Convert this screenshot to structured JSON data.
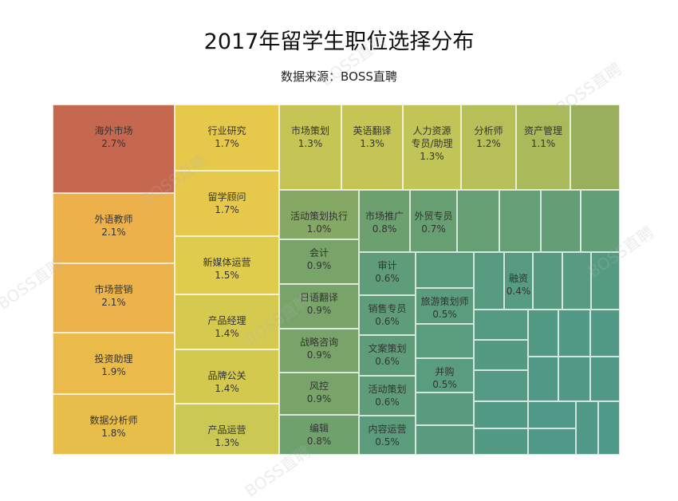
{
  "chart_data": {
    "type": "treemap",
    "title": "2017年留学生职位选择分布",
    "subtitle": "数据来源：BOSS直聘",
    "watermark": "BOSS直聘",
    "cells": [
      {
        "label": "海外市场",
        "value": "2.7%",
        "color": "#c6684f"
      },
      {
        "label": "外语教师",
        "value": "2.1%",
        "color": "#ecb14b"
      },
      {
        "label": "市场营销",
        "value": "2.1%",
        "color": "#ecb34b"
      },
      {
        "label": "投资助理",
        "value": "1.9%",
        "color": "#eabb4a"
      },
      {
        "label": "数据分析师",
        "value": "1.8%",
        "color": "#e8be4a"
      },
      {
        "label": "行业研究",
        "value": "1.7%",
        "color": "#e6c84a"
      },
      {
        "label": "留学顾问",
        "value": "1.7%",
        "color": "#e6c94a"
      },
      {
        "label": "新媒体运营",
        "value": "1.5%",
        "color": "#dfcb4c"
      },
      {
        "label": "产品经理",
        "value": "1.4%",
        "color": "#d6c94f"
      },
      {
        "label": "品牌公关",
        "value": "1.4%",
        "color": "#d4c94f"
      },
      {
        "label": "产品运营",
        "value": "1.3%",
        "color": "#cbc853"
      },
      {
        "label": "市场策划",
        "value": "1.3%",
        "color": "#c4c555"
      },
      {
        "label": "英语翻译",
        "value": "1.3%",
        "color": "#c4c555"
      },
      {
        "label": "人力资源\n专员/助理",
        "value": "1.3%",
        "color": "#c1c456"
      },
      {
        "label": "分析师",
        "value": "1.2%",
        "color": "#b6bf58"
      },
      {
        "label": "资产管理",
        "value": "1.1%",
        "color": "#aab95a"
      },
      {
        "label": "",
        "value": "",
        "color": "#99af5c"
      },
      {
        "label": "活动策划执行",
        "value": "1.0%",
        "color": "#85a865"
      },
      {
        "label": "会计",
        "value": "0.9%",
        "color": "#78a469"
      },
      {
        "label": "日语翻译",
        "value": "0.9%",
        "color": "#78a469"
      },
      {
        "label": "战略咨询",
        "value": "0.9%",
        "color": "#78a469"
      },
      {
        "label": "风控",
        "value": "0.9%",
        "color": "#78a469"
      },
      {
        "label": "编辑",
        "value": "0.8%",
        "color": "#6fa16d"
      },
      {
        "label": "市场推广",
        "value": "0.8%",
        "color": "#6ca16f"
      },
      {
        "label": "外贸专员",
        "value": "0.7%",
        "color": "#679f72"
      },
      {
        "label": "",
        "value": "",
        "color": "#659f74"
      },
      {
        "label": "",
        "value": "",
        "color": "#649f75"
      },
      {
        "label": "",
        "value": "",
        "color": "#639e76"
      },
      {
        "label": "",
        "value": "",
        "color": "#629e77"
      },
      {
        "label": "审计",
        "value": "0.6%",
        "color": "#5f9d7a"
      },
      {
        "label": "销售专员",
        "value": "0.6%",
        "color": "#5f9d7a"
      },
      {
        "label": "文案策划",
        "value": "0.6%",
        "color": "#5f9d7a"
      },
      {
        "label": "活动策划",
        "value": "0.6%",
        "color": "#5f9d7a"
      },
      {
        "label": "内容运营",
        "value": "0.5%",
        "color": "#5b9c7d"
      },
      {
        "label": "",
        "value": "",
        "color": "#5b9c7d"
      },
      {
        "label": "旅游策划师",
        "value": "0.5%",
        "color": "#5b9c7d"
      },
      {
        "label": "",
        "value": "",
        "color": "#5a9c7e"
      },
      {
        "label": "并购",
        "value": "0.5%",
        "color": "#5a9c7e"
      },
      {
        "label": "",
        "value": "",
        "color": "#5a9b7f"
      },
      {
        "label": "",
        "value": "",
        "color": "#5a9b7f"
      },
      {
        "label": "",
        "value": "",
        "color": "#579b80"
      },
      {
        "label": "融资",
        "value": "0.4%",
        "color": "#579b80"
      },
      {
        "label": "",
        "value": "",
        "color": "#569b81"
      },
      {
        "label": "",
        "value": "",
        "color": "#569b82"
      },
      {
        "label": "",
        "value": "",
        "color": "#559b82"
      },
      {
        "label": "",
        "value": "",
        "color": "#559a83"
      },
      {
        "label": "",
        "value": "",
        "color": "#549a83"
      },
      {
        "label": "",
        "value": "",
        "color": "#549a84"
      },
      {
        "label": "",
        "value": "",
        "color": "#539a84"
      },
      {
        "label": "",
        "value": "",
        "color": "#539a85"
      },
      {
        "label": "",
        "value": "",
        "color": "#539a85"
      },
      {
        "label": "",
        "value": "",
        "color": "#529a86"
      },
      {
        "label": "",
        "value": "",
        "color": "#529a86"
      },
      {
        "label": "",
        "value": "",
        "color": "#519986"
      },
      {
        "label": "",
        "value": "",
        "color": "#519987"
      },
      {
        "label": "",
        "value": "",
        "color": "#519987"
      },
      {
        "label": "",
        "value": "",
        "color": "#509988"
      },
      {
        "label": "",
        "value": "",
        "color": "#509988"
      },
      {
        "label": "",
        "value": "",
        "color": "#509988"
      },
      {
        "label": "",
        "value": "",
        "color": "#4f9989"
      },
      {
        "label": "",
        "value": "",
        "color": "#4f9989"
      },
      {
        "label": "",
        "value": "",
        "color": "#4f9989"
      }
    ]
  }
}
